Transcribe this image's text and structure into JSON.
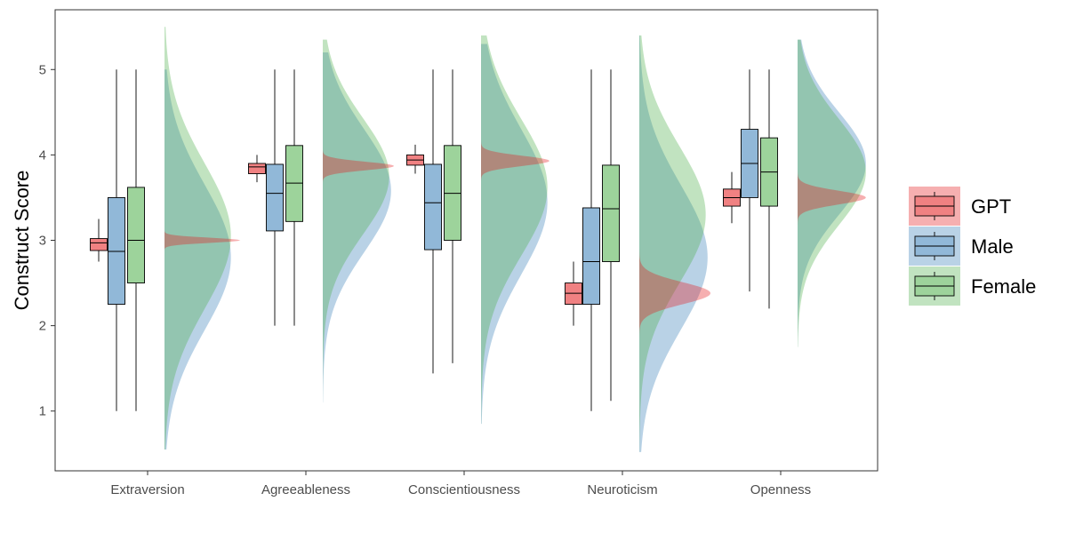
{
  "chart_data": {
    "type": "raincloud",
    "ylabel": "Construct Score",
    "ylim": [
      0.3,
      5.7
    ],
    "yticks": [
      1,
      2,
      3,
      4,
      5
    ],
    "grid": false,
    "legend_position": "right",
    "categories": [
      "Extraversion",
      "Agreeableness",
      "Conscientiousness",
      "Neuroticism",
      "Openness"
    ],
    "series": [
      {
        "name": "GPT",
        "color": "#E41A1C",
        "box": [
          {
            "min": 2.75,
            "q1": 2.88,
            "median": 2.97,
            "q3": 3.02,
            "max": 3.25
          },
          {
            "min": 3.68,
            "q1": 3.78,
            "median": 3.86,
            "q3": 3.9,
            "max": 4.0
          },
          {
            "min": 3.78,
            "q1": 3.88,
            "median": 3.94,
            "q3": 4.0,
            "max": 4.12
          },
          {
            "min": 2.0,
            "q1": 2.25,
            "median": 2.38,
            "q3": 2.5,
            "max": 2.75
          },
          {
            "min": 3.2,
            "q1": 3.4,
            "median": 3.5,
            "q3": 3.6,
            "max": 3.8
          }
        ],
        "density": [
          {
            "mean": 3.0,
            "sd": 0.03,
            "peak": 0.8,
            "low": 2.5,
            "high": 3.5
          },
          {
            "mean": 3.87,
            "sd": 0.05,
            "peak": 0.75,
            "low": 3.45,
            "high": 4.3
          },
          {
            "mean": 3.93,
            "sd": 0.06,
            "peak": 0.72,
            "low": 3.5,
            "high": 4.4
          },
          {
            "mean": 2.38,
            "sd": 0.13,
            "peak": 0.75,
            "low": 1.85,
            "high": 2.9
          },
          {
            "mean": 3.5,
            "sd": 0.08,
            "peak": 0.72,
            "low": 3.05,
            "high": 3.95
          }
        ]
      },
      {
        "name": "Male",
        "color": "#377EB8",
        "box": [
          {
            "min": 1.0,
            "q1": 2.25,
            "median": 2.87,
            "q3": 3.5,
            "max": 5.0
          },
          {
            "min": 2.0,
            "q1": 3.11,
            "median": 3.55,
            "q3": 3.89,
            "max": 5.0
          },
          {
            "min": 1.44,
            "q1": 2.89,
            "median": 3.44,
            "q3": 3.89,
            "max": 5.0
          },
          {
            "min": 1.0,
            "q1": 2.25,
            "median": 2.75,
            "q3": 3.38,
            "max": 5.0
          },
          {
            "min": 2.4,
            "q1": 3.5,
            "median": 3.9,
            "q3": 4.3,
            "max": 5.0
          }
        ],
        "density": [
          {
            "mean": 2.8,
            "sd": 0.85,
            "peak": 0.7,
            "low": 0.55,
            "high": 5.0
          },
          {
            "mean": 3.58,
            "sd": 0.72,
            "peak": 0.72,
            "low": 1.1,
            "high": 5.2
          },
          {
            "mean": 3.45,
            "sd": 0.85,
            "peak": 0.7,
            "low": 0.85,
            "high": 5.3
          },
          {
            "mean": 2.8,
            "sd": 0.85,
            "peak": 0.72,
            "low": 0.52,
            "high": 5.4
          },
          {
            "mean": 3.9,
            "sd": 0.6,
            "peak": 0.72,
            "low": 1.75,
            "high": 5.35
          }
        ]
      },
      {
        "name": "Female",
        "color": "#4DAF4A",
        "box": [
          {
            "min": 1.0,
            "q1": 2.5,
            "median": 3.0,
            "q3": 3.62,
            "max": 5.0
          },
          {
            "min": 2.0,
            "q1": 3.22,
            "median": 3.67,
            "q3": 4.11,
            "max": 5.0
          },
          {
            "min": 1.56,
            "q1": 3.0,
            "median": 3.55,
            "q3": 4.11,
            "max": 5.0
          },
          {
            "min": 1.12,
            "q1": 2.75,
            "median": 3.37,
            "q3": 3.88,
            "max": 5.0
          },
          {
            "min": 2.2,
            "q1": 3.4,
            "median": 3.8,
            "q3": 4.2,
            "max": 5.0
          }
        ],
        "density": [
          {
            "mean": 3.05,
            "sd": 0.85,
            "peak": 0.7,
            "low": 0.55,
            "high": 5.5
          },
          {
            "mean": 3.75,
            "sd": 0.68,
            "peak": 0.7,
            "low": 1.1,
            "high": 5.35
          },
          {
            "mean": 3.62,
            "sd": 0.8,
            "peak": 0.7,
            "low": 0.85,
            "high": 5.4
          },
          {
            "mean": 3.3,
            "sd": 0.8,
            "peak": 0.7,
            "low": 0.52,
            "high": 5.4
          },
          {
            "mean": 3.8,
            "sd": 0.62,
            "peak": 0.72,
            "low": 1.75,
            "high": 5.35
          }
        ]
      }
    ]
  }
}
